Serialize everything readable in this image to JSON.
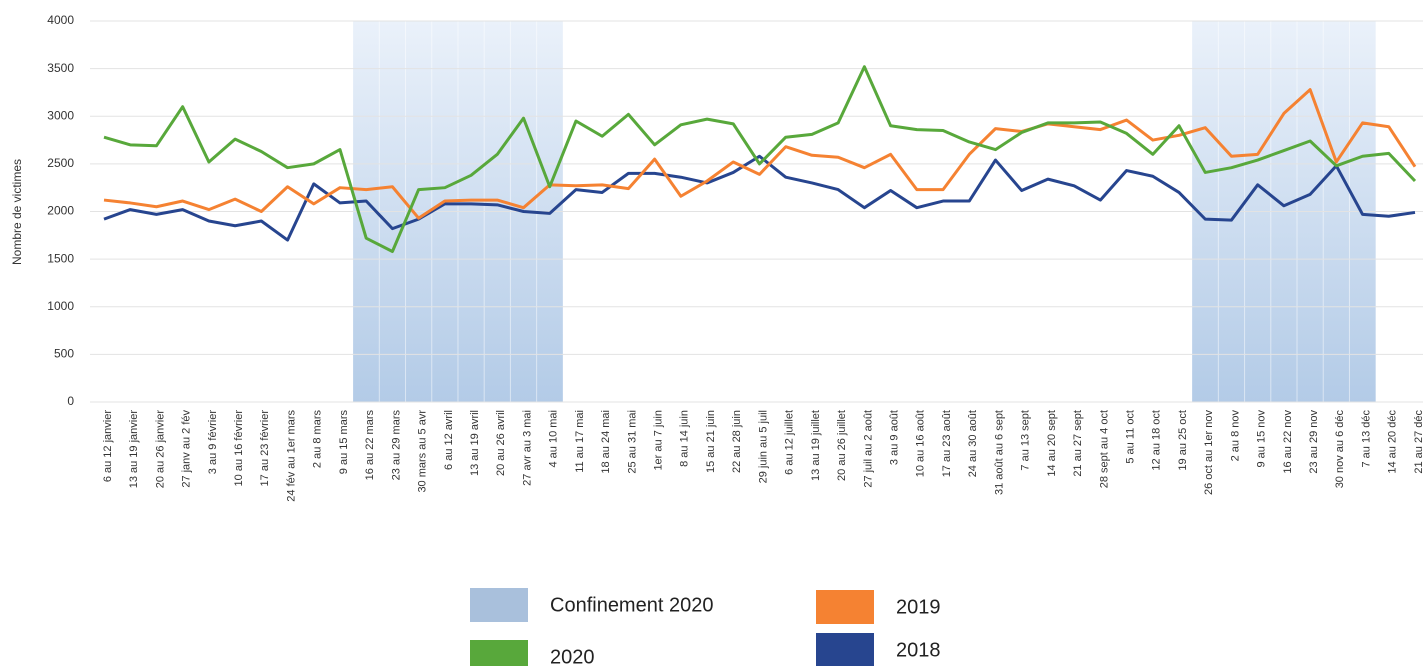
{
  "chart_data": {
    "type": "line",
    "y_label": "Nombre de victimes",
    "categories": [
      "6 au 12 janvier",
      "13 au 19 janvier",
      "20 au 26 janvier",
      "27 janv au 2 fév",
      "3 au 9 février",
      "10 au 16 février",
      "17 au 23 février",
      "24 fév au 1er mars",
      "2 au 8 mars",
      "9 au 15 mars",
      "16 au 22 mars",
      "23 au 29 mars",
      "30 mars au 5 avr",
      "6 au 12 avril",
      "13 au 19 avril",
      "20 au 26 avril",
      "27 avr au 3 mai",
      "4 au 10 mai",
      "11 au 17 mai",
      "18 au 24 mai",
      "25 au 31 mai",
      "1er au 7 juin",
      "8 au 14 juin",
      "15 au 21 juin",
      "22 au 28 juin",
      "29 juin au 5 juil",
      "6 au 12 juillet",
      "13 au 19 juillet",
      "20 au 26 juillet",
      "27 juil au 2 août",
      "3 au 9 août",
      "10 au 16 août",
      "17 au 23 août",
      "24 au 30 août",
      "31 août au 6 sept",
      "7 au 13 sept",
      "14 au 20 sept",
      "21 au 27 sept",
      "28 sept au 4 oct",
      "5 au 11 oct",
      "12 au 18 oct",
      "19 au 25 oct",
      "26 oct au 1er nov",
      "2 au 8 nov",
      "9 au 15 nov",
      "16 au 22 nov",
      "23 au 29 nov",
      "30 nov au 6 déc",
      "7 au 13 déc",
      "14 au 20 déc",
      "21 au 27 déc"
    ],
    "series": [
      {
        "name": "2020",
        "color": "#58a83b",
        "values": [
          2780,
          2700,
          2690,
          3100,
          2520,
          2760,
          2630,
          2460,
          2500,
          2650,
          1720,
          1580,
          2230,
          2250,
          2380,
          2600,
          2980,
          2260,
          2950,
          2790,
          3020,
          2700,
          2910,
          2970,
          2920,
          2500,
          2780,
          2810,
          2930,
          3520,
          2900,
          2860,
          2850,
          2730,
          2650,
          2830,
          2930,
          2930,
          2940,
          2820,
          2600,
          2900,
          2410,
          2460,
          2540,
          2640,
          2740,
          2480,
          2580,
          2610,
          2320
        ]
      },
      {
        "name": "2019",
        "color": "#f58232",
        "values": [
          2120,
          2090,
          2050,
          2110,
          2020,
          2130,
          2000,
          2260,
          2080,
          2250,
          2230,
          2260,
          1930,
          2110,
          2120,
          2120,
          2040,
          2280,
          2270,
          2280,
          2240,
          2550,
          2160,
          2320,
          2520,
          2390,
          2680,
          2590,
          2570,
          2460,
          2600,
          2230,
          2230,
          2600,
          2870,
          2840,
          2920,
          2890,
          2860,
          2960,
          2750,
          2800,
          2880,
          2580,
          2600,
          3030,
          3280,
          2520,
          2930,
          2890,
          2470
        ]
      },
      {
        "name": "2018",
        "color": "#27458f",
        "values": [
          1920,
          2020,
          1970,
          2020,
          1900,
          1850,
          1900,
          1700,
          2290,
          2090,
          2110,
          1820,
          1920,
          2080,
          2080,
          2070,
          2000,
          1980,
          2230,
          2200,
          2400,
          2400,
          2360,
          2300,
          2410,
          2580,
          2360,
          2300,
          2230,
          2040,
          2220,
          2040,
          2110,
          2110,
          2540,
          2220,
          2340,
          2270,
          2120,
          2430,
          2370,
          2200,
          1920,
          1910,
          2280,
          2060,
          2180,
          2480,
          1970,
          1950,
          1990
        ]
      }
    ],
    "shaded": {
      "name": "Confinement 2020",
      "color": "#a9c0dc",
      "regions": [
        {
          "start": "16 au 22 mars",
          "end": "4 au 10 mai"
        },
        {
          "start": "26 oct au 1er nov",
          "end": "7 au 13 déc"
        }
      ]
    },
    "ylim": [
      0,
      4000
    ],
    "yticks": [
      0,
      500,
      1000,
      1500,
      2000,
      2500,
      3000,
      3500,
      4000
    ],
    "grid": true
  }
}
